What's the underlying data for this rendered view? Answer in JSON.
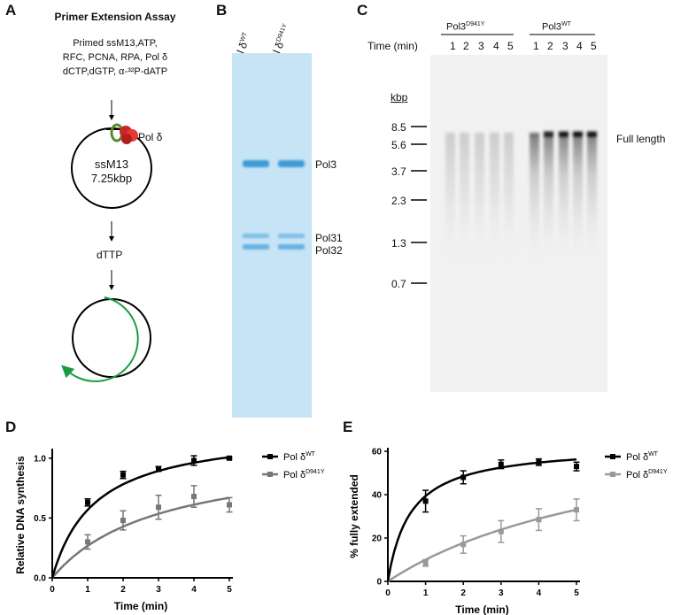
{
  "panels": {
    "A": "A",
    "B": "B",
    "C": "C",
    "D": "D",
    "E": "E"
  },
  "panelA": {
    "title": "Primer Extension Assay",
    "reagents": [
      "Primed ssM13,ATP,",
      "RFC, PCNA, RPA, Pol δ",
      "dCTP,dGTP, α-³²P-dATP"
    ],
    "pol_label": "Pol δ",
    "template": [
      "ssM13",
      "7.25kbp"
    ],
    "step2": "dTTP"
  },
  "panelB": {
    "lane_labels": [
      {
        "base": "Pol δ",
        "sup": "WT"
      },
      {
        "base": "Pol δ",
        "sup": "D941Y"
      }
    ],
    "bands": [
      "Pol3",
      "Pol31",
      "Pol32"
    ]
  },
  "panelC": {
    "groups": [
      {
        "base": "Pol3",
        "sup": "D941Y"
      },
      {
        "base": "Pol3",
        "sup": "WT"
      }
    ],
    "time_label": "Time  (min)",
    "lanes": [
      "1",
      "2",
      "3",
      "4",
      "5",
      "1",
      "2",
      "3",
      "4",
      "5"
    ],
    "kbp_label": "kbp",
    "markers": [
      "8.5",
      "5.6",
      "3.7",
      "2.3",
      "1.3",
      "0.7"
    ],
    "full_length_label": "Full length"
  },
  "chart_data": [
    {
      "type": "line",
      "panel": "D",
      "xlabel": "Time (min)",
      "ylabel": "Relative DNA synthesis",
      "xlim": [
        0,
        5
      ],
      "ylim": [
        0,
        1.05
      ],
      "xticks": [
        "0",
        "1",
        "2",
        "3",
        "4",
        "5"
      ],
      "yticks": [
        "0.0",
        "0.5",
        "1.0"
      ],
      "series": [
        {
          "name": "Pol δ",
          "sup": "WT",
          "color": "#000000",
          "x": [
            1,
            2,
            3,
            4,
            5
          ],
          "y": [
            0.63,
            0.86,
            0.91,
            0.98,
            1.0
          ],
          "err": [
            0.03,
            0.03,
            0.02,
            0.04,
            0.01
          ],
          "fit": {
            "vmax": 1.25,
            "k": 1.2
          }
        },
        {
          "name": "Pol δ",
          "sup": "D941Y",
          "color": "#777777",
          "x": [
            1,
            2,
            3,
            4,
            5
          ],
          "y": [
            0.3,
            0.48,
            0.59,
            0.68,
            0.61
          ],
          "err": [
            0.06,
            0.08,
            0.1,
            0.09,
            0.06
          ],
          "fit": {
            "vmax": 1.07,
            "k": 3.0
          }
        }
      ]
    },
    {
      "type": "line",
      "panel": "E",
      "xlabel": "Time (min)",
      "ylabel": "% fully extended",
      "xlim": [
        0,
        5
      ],
      "ylim": [
        0,
        60
      ],
      "xticks": [
        "0",
        "1",
        "2",
        "3",
        "4",
        "5"
      ],
      "yticks": [
        "0",
        "20",
        "40",
        "60"
      ],
      "series": [
        {
          "name": "Pol δ",
          "sup": "WT",
          "color": "#000000",
          "x": [
            1,
            2,
            3,
            4,
            5
          ],
          "y": [
            37,
            48,
            54,
            55,
            53
          ],
          "err": [
            5,
            3,
            2,
            1.5,
            2
          ],
          "fit": {
            "vmax": 63,
            "k": 0.6
          }
        },
        {
          "name": "Pol δ",
          "sup": "D941Y",
          "color": "#999999",
          "x": [
            1,
            2,
            3,
            4,
            5
          ],
          "y": [
            8.5,
            17,
            23,
            28.5,
            33
          ],
          "err": [
            1.5,
            4,
            5,
            5,
            5
          ],
          "fit": {
            "vmax": 78,
            "k": 6.8
          }
        }
      ]
    }
  ]
}
